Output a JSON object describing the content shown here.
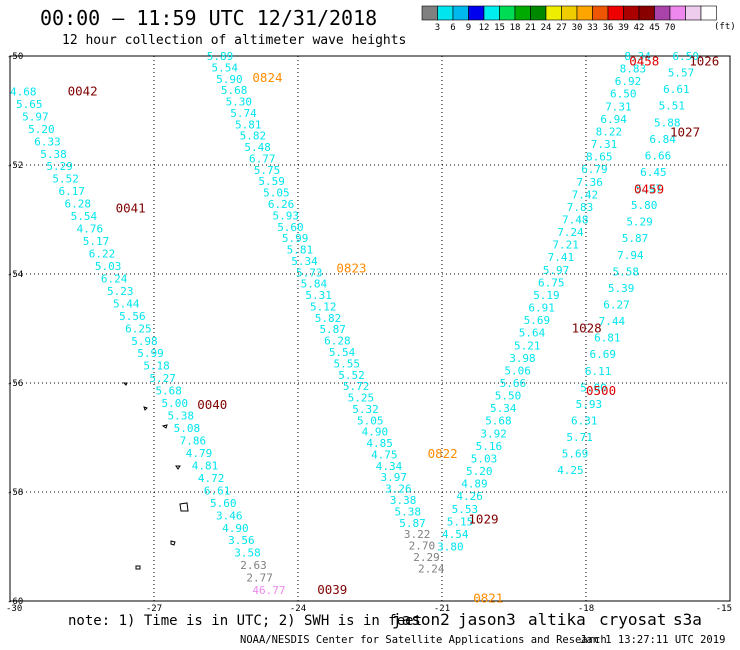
{
  "title": "00:00 – 11:59 UTC 12/31/2018",
  "subtitle": "12 hour collection of altimeter wave heights",
  "note": "note: 1) Time is in UTC; 2) SWH is in feet",
  "credit": "NOAA/NESDIS Center for Satellite Applications and Research",
  "timestamp": "Jan  1 13:27:11 UTC 2019",
  "satellites": [
    {
      "name": "jason2",
      "color": "#1515d0"
    },
    {
      "name": "jason3",
      "color": "#00a000"
    },
    {
      "name": "altika",
      "color": "#ff8c00"
    },
    {
      "name": "cryosat",
      "color": "#e00000"
    },
    {
      "name": "s3a",
      "color": "#800000"
    }
  ],
  "colorbar": {
    "unit": "(ft)",
    "colors": [
      "#808080",
      "#00e5ee",
      "#00b8ee",
      "#0000ee",
      "#00eeee",
      "#00dd55",
      "#00aa00",
      "#008800",
      "#eeee00",
      "#eecc00",
      "#ffa500",
      "#ee5500",
      "#ee0000",
      "#aa0000",
      "#880000",
      "#aa44aa",
      "#ee88ee",
      "#eecced",
      "#ffffff"
    ],
    "labels": [
      "3",
      "6",
      "9",
      "12",
      "15",
      "18",
      "21",
      "24",
      "27",
      "30",
      "33",
      "36",
      "39",
      "42",
      "45",
      "70"
    ]
  },
  "chart_data": {
    "type": "scatter",
    "xlim": [
      -30,
      -15
    ],
    "ylim": [
      -60,
      -50
    ],
    "x_ticks": [
      "-30",
      "-27",
      "-24",
      "-21",
      "-18",
      "-15"
    ],
    "y_ticks": [
      "-50",
      "-52",
      "-54",
      "-56",
      "-58",
      "-60"
    ],
    "grid": true,
    "time_labels": [
      {
        "text": "0042",
        "color": "#800000",
        "lon": -28.8,
        "lat": -50.65
      },
      {
        "text": "0041",
        "color": "#800000",
        "lon": -27.8,
        "lat": -52.8
      },
      {
        "text": "0040",
        "color": "#800000",
        "lon": -26.1,
        "lat": -56.4
      },
      {
        "text": "0039",
        "color": "#800000",
        "lon": -23.6,
        "lat": -59.8
      },
      {
        "text": "0824",
        "color": "#ff8c00",
        "lon": -24.95,
        "lat": -50.4
      },
      {
        "text": "0823",
        "color": "#ff8c00",
        "lon": -23.2,
        "lat": -53.9
      },
      {
        "text": "0822",
        "color": "#ff8c00",
        "lon": -21.3,
        "lat": -57.3
      },
      {
        "text": "0821",
        "color": "#ff8c00",
        "lon": -20.35,
        "lat": -59.95
      },
      {
        "text": "1029",
        "color": "#800000",
        "lon": -20.45,
        "lat": -58.5
      },
      {
        "text": "1028",
        "color": "#800000",
        "lon": -18.3,
        "lat": -55.0
      },
      {
        "text": "1027",
        "color": "#800000",
        "lon": -16.25,
        "lat": -51.4
      },
      {
        "text": "1026",
        "color": "#800000",
        "lon": -15.85,
        "lat": -50.1
      },
      {
        "text": "0458",
        "color": "#e00000",
        "lon": -17.1,
        "lat": -50.1
      },
      {
        "text": "0459",
        "color": "#e00000",
        "lon": -17.0,
        "lat": -52.45
      },
      {
        "text": "0500",
        "color": "#e00000",
        "lon": -18.0,
        "lat": -56.15
      }
    ],
    "tracks": [
      {
        "name": "track-0039-0042",
        "color": "#00e5ee",
        "start": [
          -30.0,
          -50.65
        ],
        "end": [
          -24.95,
          -59.8
        ],
        "values": [
          "4.68",
          "5.65",
          "5.97",
          "5.20",
          "6.33",
          "5.38",
          "5.29",
          "5.52",
          "6.17",
          "6.28",
          "5.54",
          "4.76",
          "5.17",
          "6.22",
          "5.03",
          "6.24",
          "5.23",
          "5.44",
          "5.56",
          "6.25",
          "5.98",
          "5.99",
          "5.18",
          "5.27",
          "5.68",
          "5.00",
          "5.38",
          "5.08",
          "7.86",
          "4.79",
          "4.81",
          "4.72",
          "6.61",
          "5.60",
          "3.46",
          "4.90",
          "3.56",
          "3.58"
        ],
        "tail": [
          {
            "value": "2.63",
            "color": "#808080"
          },
          {
            "value": "2.77",
            "color": "#808080"
          },
          {
            "value": "46.77",
            "color": "#ee88ee"
          }
        ]
      },
      {
        "name": "track-0821-0824",
        "color": "#00e5ee",
        "start": [
          -25.9,
          -50.0
        ],
        "end": [
          -21.5,
          -59.4
        ],
        "values": [
          "5.89",
          "5.54",
          "5.90",
          "5.68",
          "5.30",
          "5.74",
          "5.81",
          "5.82",
          "5.48",
          "6.77",
          "5.75",
          "5.59",
          "5.05",
          "6.26",
          "5.93",
          "5.60",
          "5.99",
          "5.81",
          "5.34",
          "5.73",
          "5.84",
          "5.31",
          "5.12",
          "5.82",
          "5.87",
          "6.28",
          "5.54",
          "5.55",
          "5.52",
          "5.72",
          "5.25",
          "5.32",
          "5.05",
          "4.90",
          "4.85",
          "4.75",
          "4.34",
          "3.97",
          "3.26",
          "3.38",
          "5.38",
          "5.87"
        ],
        "tail": [
          {
            "value": "3.22",
            "color": "#808080"
          },
          {
            "value": "2.70",
            "color": "#808080"
          },
          {
            "value": "2.29",
            "color": "#808080"
          },
          {
            "value": "2.24",
            "color": "#808080"
          }
        ]
      },
      {
        "name": "track-1026-1029",
        "color": "#00e5ee",
        "start": [
          -17.2,
          -50.0
        ],
        "end": [
          -21.1,
          -59.0
        ],
        "values": [
          "8.34",
          "8.83",
          "6.92",
          "6.50",
          "7.31",
          "6.94",
          "8.22",
          "7.31",
          "8.65",
          "6.79",
          "7.36",
          "7.42",
          "7.83",
          "7.48",
          "7.24",
          "7.21",
          "7.41",
          "5.97",
          "6.75",
          "5.19",
          "6.91",
          "5.69",
          "5.64",
          "5.21",
          "3.98",
          "5.06",
          "5.66",
          "5.50",
          "5.34",
          "5.68",
          "3.92",
          "5.16",
          "5.03",
          "5.20",
          "4.89",
          "4.26",
          "5.53",
          "5.15",
          "4.54",
          "3.80"
        ]
      },
      {
        "name": "track-0458-0500",
        "color": "#00e5ee",
        "start": [
          -16.2,
          -50.0
        ],
        "end": [
          -18.6,
          -57.6
        ],
        "values": [
          "6.50",
          "5.57",
          "6.61",
          "5.51",
          "5.88",
          "6.84",
          "6.66",
          "6.45",
          "5.97",
          "5.80",
          "5.29",
          "5.87",
          "7.94",
          "5.58",
          "5.39",
          "6.27",
          "7.44",
          "6.81",
          "6.69",
          "6.11",
          "5.00",
          "5.93",
          "6.31",
          "5.71",
          "5.69",
          "4.25"
        ]
      }
    ]
  }
}
